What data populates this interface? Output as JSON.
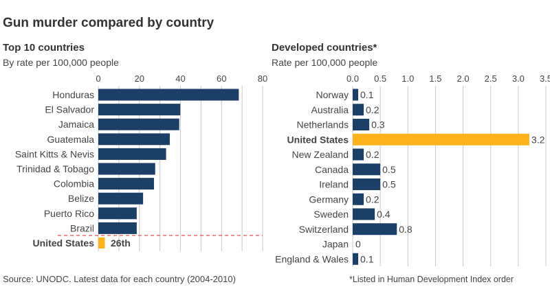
{
  "title": "Gun murder compared by country",
  "source": "Source: UNODC. Latest data for each country (2004-2010)",
  "footnote": "*Listed in Human Development Index order",
  "colors": {
    "bar": "#1b3f66",
    "highlight": "#fbb21c",
    "grid": "#c8c8c8",
    "divider": "#d9262c"
  },
  "chart_data": [
    {
      "type": "bar",
      "orientation": "horizontal",
      "title": "Top 10 countries",
      "subtitle": "By rate per 100,000 people",
      "xlim": [
        0,
        80
      ],
      "xticks": [
        0,
        20,
        40,
        60,
        80
      ],
      "grid": true,
      "categories": [
        "Honduras",
        "El Salvador",
        "Jamaica",
        "Guatemala",
        "Saint Kitts & Nevis",
        "Trinidad & Tobago",
        "Colombia",
        "Belize",
        "Puerto Rico",
        "Brazil"
      ],
      "values": [
        68.4,
        39.9,
        39.4,
        34.8,
        33.0,
        27.7,
        27.1,
        21.8,
        18.7,
        18.7
      ],
      "highlight": {
        "category": "United States",
        "value": 3.2,
        "label": "26th"
      }
    },
    {
      "type": "bar",
      "orientation": "horizontal",
      "title": "Developed countries*",
      "subtitle": "Rate per 100,000 people",
      "xlim": [
        0,
        3.5
      ],
      "xticks": [
        "0.0",
        "0.5",
        "1.0",
        "1.5",
        "2.0",
        "2.5",
        "3.0",
        "3.5"
      ],
      "grid": true,
      "categories": [
        "Norway",
        "Australia",
        "Netherlands",
        "United States",
        "New Zealand",
        "Canada",
        "Ireland",
        "Germany",
        "Sweden",
        "Switzerland",
        "Japan",
        "England & Wales"
      ],
      "values": [
        0.1,
        0.2,
        0.3,
        3.2,
        0.2,
        0.5,
        0.5,
        0.2,
        0.4,
        0.8,
        0,
        0.1
      ],
      "labels": [
        "0.1",
        "0.2",
        "0.3",
        "3.2",
        "0.2",
        "0.5",
        "0.5",
        "0.2",
        "0.4",
        "0.8",
        "0",
        "0.1"
      ],
      "highlight_category": "United States"
    }
  ]
}
